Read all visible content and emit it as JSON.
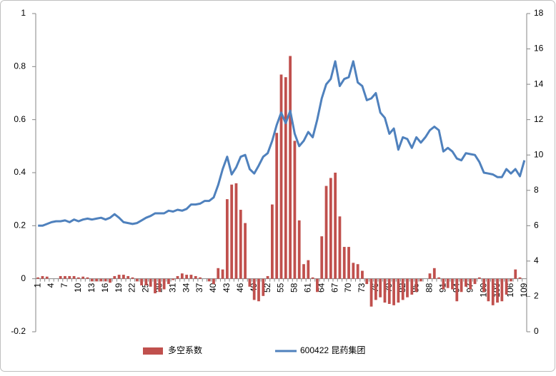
{
  "chart_data": {
    "type": "bar",
    "categories": [
      "1",
      null,
      null,
      "4",
      null,
      null,
      "7",
      null,
      null,
      "10",
      null,
      null,
      "13",
      null,
      null,
      "16",
      null,
      null,
      "19",
      null,
      null,
      "22",
      null,
      null,
      "25",
      null,
      null,
      "28",
      null,
      null,
      "31",
      null,
      null,
      "34",
      null,
      null,
      "37",
      null,
      null,
      "40",
      null,
      null,
      "43",
      null,
      null,
      "46",
      null,
      null,
      "49",
      null,
      null,
      "52",
      null,
      null,
      "55",
      null,
      null,
      "58",
      null,
      null,
      "61",
      null,
      null,
      "64",
      null,
      null,
      "67",
      null,
      null,
      "70",
      null,
      null,
      "73",
      null,
      null,
      "76",
      null,
      null,
      "79",
      null,
      null,
      "82",
      null,
      null,
      "85",
      null,
      null,
      "88",
      null,
      null,
      "91",
      null,
      null,
      "94",
      null,
      null,
      "97",
      null,
      null,
      "100",
      null,
      null,
      "103",
      null,
      null,
      "106",
      null,
      null,
      "109"
    ],
    "series": [
      {
        "name": "多空系数",
        "color": "#c0504d",
        "type": "bar",
        "values": [
          0.005,
          0.01,
          0.008,
          0,
          0,
          0.01,
          0.01,
          0.01,
          0.01,
          0.005,
          0.008,
          0.005,
          -0.01,
          -0.01,
          -0.01,
          -0.01,
          -0.015,
          0.01,
          0.015,
          0.015,
          0.01,
          0.005,
          -0.01,
          -0.025,
          -0.025,
          -0.03,
          -0.055,
          -0.05,
          -0.04,
          -0.02,
          -0.005,
          0.01,
          0.02,
          0.015,
          0.015,
          0.01,
          0.005,
          0,
          -0.01,
          -0.02,
          0.04,
          0.035,
          0.3,
          0.355,
          0.36,
          0.26,
          0.21,
          -0.03,
          -0.08,
          -0.085,
          -0.065,
          0.01,
          0.28,
          0.55,
          0.77,
          0.76,
          0.84,
          0.52,
          0.22,
          0.055,
          0.07,
          0.005,
          -0.05,
          0.16,
          0.35,
          0.38,
          0.4,
          0.235,
          0.12,
          0.12,
          0.06,
          0.055,
          0.03,
          -0.02,
          -0.105,
          -0.08,
          -0.07,
          -0.09,
          -0.095,
          -0.1,
          -0.09,
          -0.08,
          -0.07,
          -0.06,
          -0.05,
          -0.01,
          0,
          0.02,
          0.04,
          0.005,
          -0.04,
          -0.035,
          -0.04,
          -0.085,
          -0.05,
          -0.03,
          -0.04,
          -0.02,
          0.005,
          -0.05,
          -0.085,
          -0.1,
          -0.09,
          -0.085,
          -0.06,
          -0.01,
          0.035,
          0.005,
          0
        ]
      },
      {
        "name": "600422 昆药集团",
        "color": "#4f81bd",
        "type": "line",
        "axis": "y2",
        "values": [
          6.0,
          6.0,
          6.1,
          6.2,
          6.25,
          6.25,
          6.3,
          6.2,
          6.35,
          6.25,
          6.35,
          6.4,
          6.35,
          6.4,
          6.45,
          6.35,
          6.45,
          6.65,
          6.45,
          6.2,
          6.15,
          6.1,
          6.15,
          6.3,
          6.45,
          6.55,
          6.7,
          6.7,
          6.7,
          6.85,
          6.8,
          6.9,
          6.85,
          6.95,
          7.2,
          7.2,
          7.25,
          7.4,
          7.4,
          7.6,
          8.3,
          9.2,
          9.9,
          8.9,
          9.3,
          9.9,
          10.0,
          9.2,
          8.95,
          9.4,
          9.9,
          10.1,
          10.8,
          11.7,
          12.4,
          11.8,
          12.5,
          11.2,
          10.5,
          10.8,
          11.3,
          11.0,
          12.0,
          13.2,
          14.0,
          14.3,
          15.3,
          13.9,
          14.3,
          14.4,
          15.3,
          14.1,
          13.9,
          13.1,
          13.2,
          13.5,
          12.4,
          12.1,
          11.2,
          11.5,
          10.3,
          11.0,
          10.9,
          10.4,
          11.0,
          10.7,
          11.0,
          11.4,
          11.6,
          11.4,
          10.2,
          10.4,
          10.2,
          9.8,
          9.7,
          10.1,
          10.05,
          10.0,
          9.6,
          9.0,
          8.95,
          8.9,
          8.75,
          8.75,
          9.2,
          8.95,
          9.2,
          8.8,
          9.7
        ]
      }
    ],
    "ylim": [
      -0.2,
      1
    ],
    "yticks": [
      1,
      0.8,
      0.6,
      0.4,
      0.2,
      0,
      -0.2
    ],
    "y2lim": [
      0,
      18
    ],
    "y2ticks": [
      0,
      2,
      4,
      6,
      8,
      10,
      12,
      14,
      16,
      18
    ],
    "grid": false,
    "legend": "bottom"
  }
}
